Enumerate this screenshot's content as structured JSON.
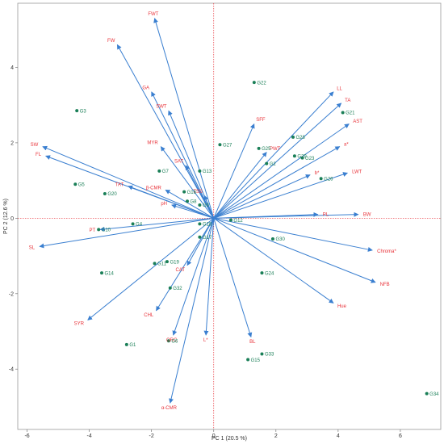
{
  "chart_data": {
    "type": "scatter",
    "subtype": "pca-biplot",
    "xlabel": "PC 1  (20.5 %)",
    "ylabel": "PC 2  (12.6 %)",
    "xlim": [
      -6.3,
      7.3
    ],
    "ylim": [
      -5.6,
      5.7
    ],
    "xticks": [
      -6,
      -4,
      -2,
      0,
      2,
      4,
      6
    ],
    "yticks": [
      -4,
      -2,
      0,
      2,
      4
    ],
    "reference_lines": {
      "x": 0,
      "y": 0,
      "style": "dotted",
      "color": "#e8333a"
    },
    "colors": {
      "vector": "#3a7fd0",
      "variable_label": "#e8333a",
      "genotype": "#1a7f57",
      "frame": "#999999"
    },
    "loadings": [
      {
        "name": "FWT",
        "x": -1.9,
        "y": 5.3
      },
      {
        "name": "FW",
        "x": -3.1,
        "y": 4.6
      },
      {
        "name": "GA",
        "x": -2.0,
        "y": 3.35
      },
      {
        "name": "SWT",
        "x": -1.45,
        "y": 2.85
      },
      {
        "name": "MYR",
        "x": -1.7,
        "y": 1.9
      },
      {
        "name": "SW",
        "x": -5.5,
        "y": 1.9
      },
      {
        "name": "FL",
        "x": -5.4,
        "y": 1.65
      },
      {
        "name": "SAT",
        "x": -0.9,
        "y": 1.4
      },
      {
        "name": "TAT",
        "x": -2.75,
        "y": 0.85
      },
      {
        "name": "β-CMR",
        "x": -1.55,
        "y": 0.75
      },
      {
        "name": "pH",
        "x": -1.35,
        "y": 0.35
      },
      {
        "name": "TSS",
        "x": -0.3,
        "y": 0.6
      },
      {
        "name": "PT",
        "x": -3.65,
        "y": -0.3
      },
      {
        "name": "SL",
        "x": -5.6,
        "y": -0.75
      },
      {
        "name": "SYR",
        "x": -4.05,
        "y": -2.7
      },
      {
        "name": "CAT",
        "x": -0.85,
        "y": -1.25
      },
      {
        "name": "CHL",
        "x": -1.85,
        "y": -2.45
      },
      {
        "name": "ORC",
        "x": -1.3,
        "y": -3.1
      },
      {
        "name": "L*",
        "x": -0.25,
        "y": -3.1
      },
      {
        "name": "α-CMR",
        "x": -1.4,
        "y": -4.9
      },
      {
        "name": "BL",
        "x": 1.2,
        "y": -3.15
      },
      {
        "name": "Hue",
        "x": 3.85,
        "y": -2.25
      },
      {
        "name": "NFB",
        "x": 5.2,
        "y": -1.7
      },
      {
        "name": "Chroma*",
        "x": 5.1,
        "y": -0.85
      },
      {
        "name": "BW",
        "x": 4.65,
        "y": 0.1
      },
      {
        "name": "PL",
        "x": 3.35,
        "y": 0.1
      },
      {
        "name": "LWT",
        "x": 4.3,
        "y": 1.2
      },
      {
        "name": "b*",
        "x": 3.1,
        "y": 1.15
      },
      {
        "name": "a*",
        "x": 4.05,
        "y": 1.9
      },
      {
        "name": "AST",
        "x": 4.35,
        "y": 2.5
      },
      {
        "name": "TA",
        "x": 4.1,
        "y": 3.05
      },
      {
        "name": "LL",
        "x": 3.85,
        "y": 3.35
      },
      {
        "name": "SFF",
        "x": 1.3,
        "y": 2.5
      },
      {
        "name": "PWT",
        "x": 1.7,
        "y": 1.75
      }
    ],
    "scores": [
      {
        "name": "G1",
        "x": -2.8,
        "y": -3.35
      },
      {
        "name": "G2",
        "x": 1.7,
        "y": 1.45
      },
      {
        "name": "G3",
        "x": -4.4,
        "y": 2.85
      },
      {
        "name": "G4",
        "x": -2.6,
        "y": -0.15
      },
      {
        "name": "G5",
        "x": -4.45,
        "y": 0.9
      },
      {
        "name": "G6",
        "x": -1.45,
        "y": -3.25
      },
      {
        "name": "G7",
        "x": -1.75,
        "y": 1.25
      },
      {
        "name": "G8",
        "x": -0.85,
        "y": 0.45
      },
      {
        "name": "G9",
        "x": -0.45,
        "y": 0.35
      },
      {
        "name": "G10",
        "x": -3.7,
        "y": -0.3
      },
      {
        "name": "G11",
        "x": -1.9,
        "y": -1.2
      },
      {
        "name": "G12",
        "x": 0.55,
        "y": -0.05
      },
      {
        "name": "G13",
        "x": -0.45,
        "y": 1.25
      },
      {
        "name": "G14",
        "x": -3.6,
        "y": -1.45
      },
      {
        "name": "G15",
        "x": 1.1,
        "y": -3.75
      },
      {
        "name": "G16",
        "x": -0.95,
        "y": 0.7
      },
      {
        "name": "G17",
        "x": -0.45,
        "y": -0.5
      },
      {
        "name": "G18",
        "x": -0.45,
        "y": -0.15
      },
      {
        "name": "G19",
        "x": -1.5,
        "y": -1.15
      },
      {
        "name": "G20",
        "x": -3.5,
        "y": 0.65
      },
      {
        "name": "G21",
        "x": 4.15,
        "y": 2.8
      },
      {
        "name": "G22",
        "x": 1.3,
        "y": 3.6
      },
      {
        "name": "G23",
        "x": 2.85,
        "y": 1.6
      },
      {
        "name": "G24",
        "x": 1.55,
        "y": -1.45
      },
      {
        "name": "G25",
        "x": 1.45,
        "y": 1.85
      },
      {
        "name": "G26",
        "x": 3.45,
        "y": 1.05
      },
      {
        "name": "G27",
        "x": 0.2,
        "y": 1.95
      },
      {
        "name": "G28",
        "x": 2.55,
        "y": 2.15
      },
      {
        "name": "G29",
        "x": 2.6,
        "y": 1.65
      },
      {
        "name": "G30",
        "x": 1.9,
        "y": -0.55
      },
      {
        "name": "G32",
        "x": -1.4,
        "y": -1.85
      },
      {
        "name": "G33",
        "x": 1.55,
        "y": -3.6
      },
      {
        "name": "G34",
        "x": 6.85,
        "y": -4.65
      }
    ]
  }
}
